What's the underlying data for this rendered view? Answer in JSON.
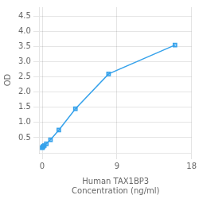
{
  "chart_data": {
    "type": "line",
    "x": [
      0,
      0.0625,
      0.125,
      0.25,
      0.5,
      1.0,
      2.0,
      4.0,
      8.0,
      16.0
    ],
    "values": [
      0.17,
      0.19,
      0.21,
      0.24,
      0.3,
      0.43,
      0.75,
      1.45,
      2.6,
      3.55
    ],
    "marker": "square",
    "xlabel": "Human TAX1BP3\nConcentration (ng/ml)",
    "ylabel": "OD",
    "xlim": [
      -0.3,
      18
    ],
    "xticks": [
      0,
      9,
      18
    ],
    "ylim": [
      0,
      4.8
    ],
    "yticks": [
      0.5,
      {
        "value": 1.0,
        "label": "1.0"
      },
      1.5,
      {
        "value": 2.0,
        "label": "2.0"
      },
      2.5,
      {
        "value": 3.0,
        "label": "3.0"
      },
      3.5,
      {
        "value": 4.0,
        "label": "4.0"
      },
      4.5
    ],
    "grid": true
  }
}
